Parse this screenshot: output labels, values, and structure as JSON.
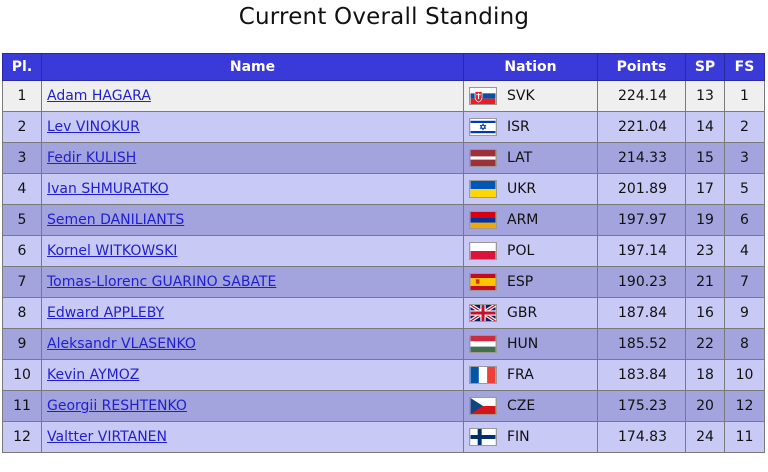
{
  "title": "Current Overall Standing",
  "columns": {
    "pl": "Pl.",
    "name": "Name",
    "nation": "Nation",
    "points": "Points",
    "sp": "SP",
    "fs": "FS"
  },
  "rows": [
    {
      "pl": "1",
      "name": "Adam HAGARA",
      "nation": "SVK",
      "flag": "svk-flag-icon",
      "points": "224.14",
      "sp": "13",
      "fs": "1"
    },
    {
      "pl": "2",
      "name": "Lev VINOKUR",
      "nation": "ISR",
      "flag": "isr-flag-icon",
      "points": "221.04",
      "sp": "14",
      "fs": "2"
    },
    {
      "pl": "3",
      "name": "Fedir KULISH",
      "nation": "LAT",
      "flag": "lat-flag-icon",
      "points": "214.33",
      "sp": "15",
      "fs": "3"
    },
    {
      "pl": "4",
      "name": "Ivan SHMURATKO",
      "nation": "UKR",
      "flag": "ukr-flag-icon",
      "points": "201.89",
      "sp": "17",
      "fs": "5"
    },
    {
      "pl": "5",
      "name": "Semen DANILIANTS",
      "nation": "ARM",
      "flag": "arm-flag-icon",
      "points": "197.97",
      "sp": "19",
      "fs": "6"
    },
    {
      "pl": "6",
      "name": "Kornel WITKOWSKI",
      "nation": "POL",
      "flag": "pol-flag-icon",
      "points": "197.14",
      "sp": "23",
      "fs": "4"
    },
    {
      "pl": "7",
      "name": "Tomas-Llorenc GUARINO SABATE",
      "nation": "ESP",
      "flag": "esp-flag-icon",
      "points": "190.23",
      "sp": "21",
      "fs": "7"
    },
    {
      "pl": "8",
      "name": "Edward APPLEBY",
      "nation": "GBR",
      "flag": "gbr-flag-icon",
      "points": "187.84",
      "sp": "16",
      "fs": "9"
    },
    {
      "pl": "9",
      "name": "Aleksandr VLASENKO",
      "nation": "HUN",
      "flag": "hun-flag-icon",
      "points": "185.52",
      "sp": "22",
      "fs": "8"
    },
    {
      "pl": "10",
      "name": "Kevin AYMOZ",
      "nation": "FRA",
      "flag": "fra-flag-icon",
      "points": "183.84",
      "sp": "18",
      "fs": "10"
    },
    {
      "pl": "11",
      "name": "Georgii RESHTENKO",
      "nation": "CZE",
      "flag": "cze-flag-icon",
      "points": "175.23",
      "sp": "20",
      "fs": "12"
    },
    {
      "pl": "12",
      "name": "Valtter VIRTANEN",
      "nation": "FIN",
      "flag": "fin-flag-icon",
      "points": "174.83",
      "sp": "24",
      "fs": "11"
    }
  ],
  "colors": {
    "header": "#3a3ad8",
    "link": "#1f1fd0",
    "row_odd": "#c9c9f5",
    "row_even": "#a3a3de",
    "row_first": "#efefef"
  }
}
